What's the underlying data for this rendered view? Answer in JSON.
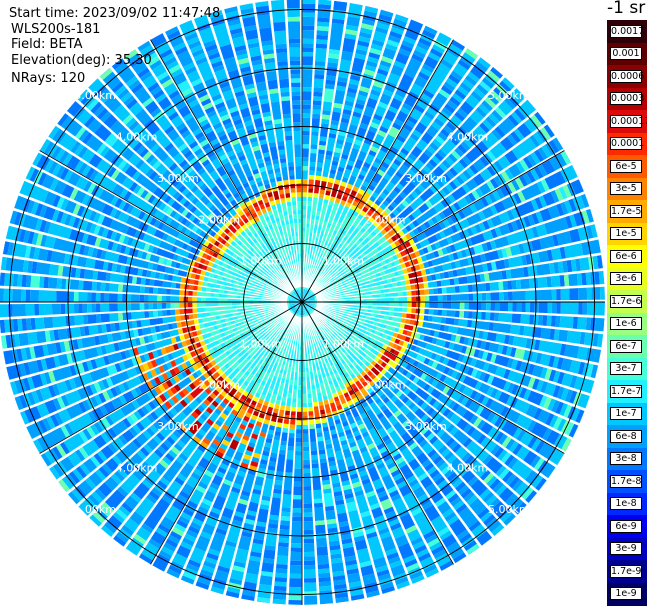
{
  "header": {
    "start_time": "Start time: 2023/09/02 11:47:48",
    "instrument": "WLS200s-181",
    "field": "Field: BETA",
    "elevation": "Elevation(deg): 35.30",
    "nrays": "NRays: 120"
  },
  "colorbar": {
    "title": "-1 sr",
    "colors": [
      "#2e0008",
      "#5c0000",
      "#8b0000",
      "#b40000",
      "#dc0a0a",
      "#ff2a00",
      "#ff5a00",
      "#ff8200",
      "#ffaa00",
      "#ffd400",
      "#ffff00",
      "#e8ff20",
      "#c4ff50",
      "#98ff80",
      "#6cffae",
      "#44ffd8",
      "#22f0ff",
      "#00c8ff",
      "#00a0ff",
      "#0078ff",
      "#0050ff",
      "#0028ff",
      "#0000f0",
      "#0000c0",
      "#000090",
      "#000060"
    ],
    "labels": [
      "0.0017",
      "0.001",
      "0.0006",
      "0.0003",
      "0.00017",
      "0.0001",
      "6e-5",
      "3e-5",
      "1.7e-5",
      "1e-5",
      "6e-6",
      "3e-6",
      "1.7e-6",
      "1e-6",
      "6e-7",
      "3e-7",
      "1.7e-7",
      "1e-7",
      "6e-8",
      "3e-8",
      "1.7e-8",
      "1e-8",
      "6e-9",
      "3e-9",
      "1.7e-9",
      "1e-9"
    ]
  },
  "chart_data": {
    "type": "heatmap",
    "projection": "polar PPI",
    "field": "BETA",
    "units": "-1 sr",
    "elevation_deg": 35.3,
    "n_rays": 120,
    "range_rings_km": [
      1,
      2,
      3,
      4,
      5
    ],
    "range_ring_labels": [
      "1.00km",
      "2.00km",
      "3.00km",
      "4.00km",
      "5.00km"
    ],
    "max_range_km": 5.2,
    "spokes_deg": [
      0,
      30,
      60,
      90,
      120,
      150,
      180,
      210,
      240,
      270,
      300,
      330
    ],
    "colormap": "log scale 1e-9 to 0.0017, levels as colorbar labels",
    "features": {
      "background_level": "3e-8 to 1e-7",
      "inner_fill_level": "1.7e-7 to 3e-7",
      "inner_fill_radius_km": [
        0.3,
        1.6
      ],
      "high_ring_level": "3e-5 to 0.0003",
      "high_ring_radius_km": 1.9,
      "high_tail_directions_deg": [
        210,
        240
      ],
      "high_tail_radius_km": [
        2.0,
        3.0
      ]
    }
  }
}
